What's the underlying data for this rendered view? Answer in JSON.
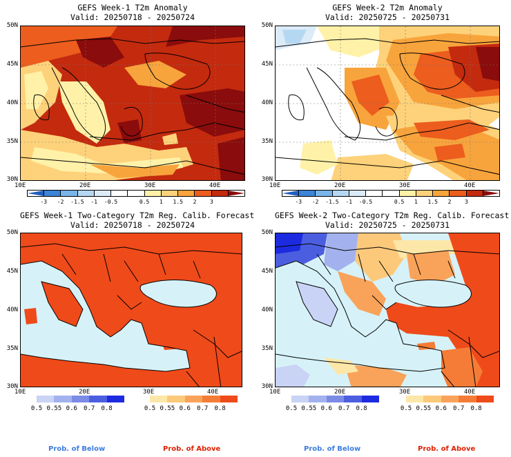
{
  "panels": {
    "p1": {
      "title": "GEFS Week-1 T2m Anomaly",
      "valid": "Valid: 20250718 - 20250724"
    },
    "p2": {
      "title": "GEFS Week-2 T2m Anomaly",
      "valid": "Valid: 20250725 - 20250731"
    },
    "p3": {
      "title": "GEFS Week-1 Two-Category T2m Reg. Calib. Forecast",
      "valid": "Valid: 20250718 - 20250724"
    },
    "p4": {
      "title": "GEFS Week-2 Two-Category T2m Reg. Calib. Forecast",
      "valid": "Valid: 20250725 - 20250731"
    }
  },
  "axes": {
    "lat_labels": [
      "50N",
      "45N",
      "40N",
      "35N",
      "30N"
    ],
    "lon_labels": [
      "10E",
      "20E",
      "30E",
      "40E"
    ]
  },
  "anomaly_colorbar": {
    "labels": [
      "-3",
      "-2",
      "-1.5",
      "-1",
      "-0.5",
      "0.5",
      "1",
      "1.5",
      "2",
      "3"
    ],
    "colors": [
      "#1f5fbf",
      "#3c84d6",
      "#78b5e8",
      "#b5d8f2",
      "#dcebf8",
      "#ffffff",
      "#ffffff",
      "#fff2a8",
      "#fdd27a",
      "#f8a43c",
      "#ec5d1e",
      "#c42a0e",
      "#8a0c0c"
    ]
  },
  "below_colorbar": {
    "labels": [
      "0.5",
      "0.55",
      "0.6",
      "0.7",
      "0.8"
    ],
    "colors": [
      "#c9d3f5",
      "#a3b2ee",
      "#7c8be6",
      "#4c5ee0",
      "#1c2be0"
    ]
  },
  "above_colorbar": {
    "labels": [
      "0.5",
      "0.55",
      "0.6",
      "0.7",
      "0.8"
    ],
    "colors": [
      "#fde7a8",
      "#fcc97b",
      "#f9a35a",
      "#f57c36",
      "#ef4a1a"
    ]
  },
  "captions": {
    "below": "Prob. of Below",
    "above": "Prob. of Above"
  },
  "colors": {
    "sea_prob": "#d6f2f8",
    "prob_below": "#3d7ce0",
    "prob_above": "#e02000"
  }
}
